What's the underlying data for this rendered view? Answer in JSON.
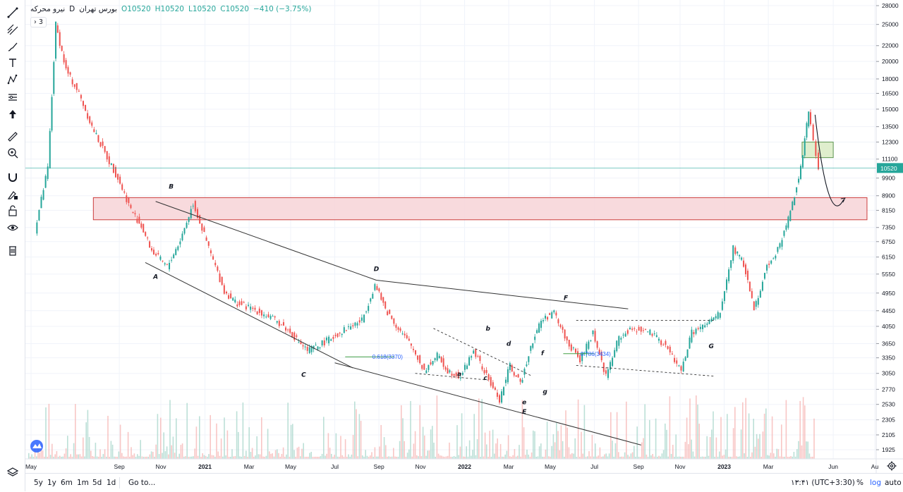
{
  "header": {
    "title": "نیرو محرکه",
    "exchange": "بورس تهران",
    "interval": "D",
    "ohlc": {
      "open": "O10520",
      "high": "H10520",
      "low": "L10520",
      "close": "C10520",
      "change": "−410 (−3.75%)"
    },
    "collapsed_indicators": "› 3"
  },
  "bottom": {
    "ranges": [
      "5y",
      "1y",
      "6m",
      "1m",
      "5d",
      "1d"
    ],
    "goto": "Go to...",
    "clock": "۱۳:۴۱ (UTC+3:30)",
    "percent": "%",
    "log": "log",
    "auto": "auto"
  },
  "toolbar": [
    {
      "name": "trend-line-icon"
    },
    {
      "name": "pitchfork-icon"
    },
    {
      "name": "brush-icon"
    },
    {
      "name": "text-icon"
    },
    {
      "name": "pattern-icon"
    },
    {
      "name": "prediction-icon"
    },
    {
      "name": "arrow-up-icon"
    },
    {
      "name": "ruler-icon"
    },
    {
      "name": "zoom-in-icon"
    },
    {
      "name": "magnet-icon"
    },
    {
      "name": "lock-drawing-icon"
    },
    {
      "name": "lock-icon"
    },
    {
      "name": "eye-icon"
    },
    {
      "name": "trash-icon"
    }
  ],
  "colors": {
    "up": "#26a69a",
    "down": "#ef5350",
    "last_price": "#26a69a",
    "zone_red": "#f8d7da",
    "zone_green": "#dcedc8"
  },
  "chart_data": {
    "type": "candlestick",
    "y_scale": "log",
    "y_ticks": [
      28000,
      25000,
      22000,
      20000,
      18000,
      16500,
      15000,
      13500,
      12300,
      11100,
      9900,
      8900,
      8150,
      7350,
      6750,
      6150,
      5550,
      4950,
      4450,
      4050,
      3650,
      3350,
      3050,
      2770,
      2530,
      2305,
      2105,
      1925
    ],
    "last_price": "10520",
    "x_ticks": [
      "May",
      "Sep",
      "Nov",
      "2021",
      "Mar",
      "May",
      "Jul",
      "Sep",
      "Nov",
      "2022",
      "Mar",
      "May",
      "Jul",
      "Sep",
      "Nov",
      "2023",
      "Mar",
      "Jun",
      "Au"
    ],
    "x_tick_dates": [
      2020.33,
      2020.67,
      2020.83,
      2021.0,
      2021.17,
      2021.33,
      2021.5,
      2021.67,
      2021.83,
      2022.0,
      2022.17,
      2022.33,
      2022.5,
      2022.67,
      2022.83,
      2023.0,
      2023.17,
      2023.42,
      2023.58
    ],
    "price_path": [
      [
        2020.35,
        7200
      ],
      [
        2020.4,
        10500
      ],
      [
        2020.43,
        25000
      ],
      [
        2020.47,
        19000
      ],
      [
        2020.52,
        16500
      ],
      [
        2020.57,
        13500
      ],
      [
        2020.62,
        11500
      ],
      [
        2020.67,
        9900
      ],
      [
        2020.72,
        8200
      ],
      [
        2020.76,
        7400
      ],
      [
        2020.8,
        6400
      ],
      [
        2020.86,
        5800
      ],
      [
        2020.91,
        6800
      ],
      [
        2020.96,
        8500
      ],
      [
        2021.02,
        6500
      ],
      [
        2021.08,
        5000
      ],
      [
        2021.13,
        4650
      ],
      [
        2021.19,
        4500
      ],
      [
        2021.25,
        4300
      ],
      [
        2021.3,
        4100
      ],
      [
        2021.35,
        3800
      ],
      [
        2021.4,
        3500
      ],
      [
        2021.44,
        3600
      ],
      [
        2021.5,
        3800
      ],
      [
        2021.55,
        4000
      ],
      [
        2021.61,
        4200
      ],
      [
        2021.66,
        5200
      ],
      [
        2021.7,
        4500
      ],
      [
        2021.75,
        4000
      ],
      [
        2021.8,
        3600
      ],
      [
        2021.85,
        3100
      ],
      [
        2021.9,
        3400
      ],
      [
        2021.94,
        3100
      ],
      [
        2021.99,
        3000
      ],
      [
        2022.04,
        3500
      ],
      [
        2022.09,
        3000
      ],
      [
        2022.14,
        2600
      ],
      [
        2022.18,
        3200
      ],
      [
        2022.22,
        2850
      ],
      [
        2022.26,
        3600
      ],
      [
        2022.3,
        4200
      ],
      [
        2022.35,
        4400
      ],
      [
        2022.4,
        3700
      ],
      [
        2022.45,
        3300
      ],
      [
        2022.5,
        3900
      ],
      [
        2022.55,
        3000
      ],
      [
        2022.6,
        3800
      ],
      [
        2022.66,
        4000
      ],
      [
        2022.72,
        3900
      ],
      [
        2022.78,
        3600
      ],
      [
        2022.84,
        3100
      ],
      [
        2022.88,
        3900
      ],
      [
        2022.94,
        4100
      ],
      [
        2022.99,
        4400
      ],
      [
        2023.04,
        6500
      ],
      [
        2023.08,
        5900
      ],
      [
        2023.12,
        4500
      ],
      [
        2023.17,
        5800
      ],
      [
        2023.22,
        6600
      ],
      [
        2023.26,
        8100
      ],
      [
        2023.3,
        10500
      ],
      [
        2023.33,
        14800
      ],
      [
        2023.35,
        12300
      ],
      [
        2023.37,
        10520
      ]
    ],
    "zones": [
      {
        "label": "resistance-zone",
        "from": 2020.57,
        "to": 2023.55,
        "low": 7700,
        "high": 8800,
        "color": "red"
      },
      {
        "label": "target-zone",
        "from": 2023.3,
        "to": 2023.42,
        "low": 11200,
        "high": 12300,
        "color": "green"
      }
    ],
    "trendlines": [
      {
        "from": [
          2020.81,
          8600
        ],
        "to": [
          2021.66,
          5350
        ]
      },
      {
        "from": [
          2021.66,
          5350
        ],
        "to": [
          2022.63,
          4500
        ]
      },
      {
        "from": [
          2020.77,
          5950
        ],
        "to": [
          2021.57,
          3150
        ]
      },
      {
        "from": [
          2021.5,
          3250
        ],
        "to": [
          2022.68,
          1980
        ]
      }
    ],
    "dashed_lines": [
      {
        "from": [
          2021.88,
          4000
        ],
        "to": [
          2022.26,
          3000
        ]
      },
      {
        "from": [
          2021.81,
          3050
        ],
        "to": [
          2022.09,
          2930
        ]
      },
      {
        "from": [
          2022.43,
          4200
        ],
        "to": [
          2022.96,
          4200
        ]
      },
      {
        "from": [
          2022.43,
          3200
        ],
        "to": [
          2022.96,
          3000
        ]
      }
    ],
    "fib_levels": [
      {
        "label": "0.618(3370)",
        "price": 3370,
        "from": 2021.54,
        "to": 2021.73
      },
      {
        "label": "0.786(3434)",
        "price": 3434,
        "from": 2022.38,
        "to": 2022.5
      }
    ],
    "wave_labels": [
      {
        "text": "A",
        "x": 2020.81,
        "y": 5400
      },
      {
        "text": "B",
        "x": 2020.87,
        "y": 9300
      },
      {
        "text": "C",
        "x": 2021.38,
        "y": 2990
      },
      {
        "text": "D",
        "x": 2021.66,
        "y": 5650
      },
      {
        "text": "a",
        "x": 2021.98,
        "y": 3000
      },
      {
        "text": "b",
        "x": 2022.09,
        "y": 3950
      },
      {
        "text": "c",
        "x": 2022.08,
        "y": 2930
      },
      {
        "text": "d",
        "x": 2022.17,
        "y": 3600
      },
      {
        "text": "e",
        "x": 2022.23,
        "y": 2530
      },
      {
        "text": "E",
        "x": 2022.23,
        "y": 2390
      },
      {
        "text": "f",
        "x": 2022.3,
        "y": 3400
      },
      {
        "text": "g",
        "x": 2022.31,
        "y": 2700
      },
      {
        "text": "F",
        "x": 2022.39,
        "y": 4750
      },
      {
        "text": "G",
        "x": 2022.95,
        "y": 3550
      }
    ],
    "projection": [
      [
        2023.35,
        14500
      ],
      [
        2023.4,
        8400
      ],
      [
        2023.46,
        8700
      ]
    ]
  }
}
